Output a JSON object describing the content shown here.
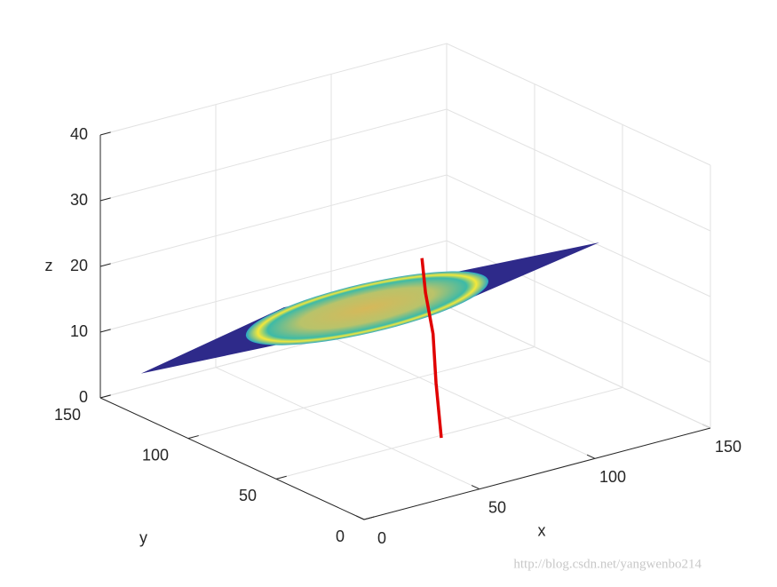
{
  "chart_data": {
    "type": "surface3d",
    "xlabel": "x",
    "ylabel": "y",
    "zlabel": "z",
    "xlim": [
      0,
      150
    ],
    "ylim": [
      0,
      150
    ],
    "zlim": [
      0,
      40
    ],
    "xticks": [
      0,
      50,
      100,
      150
    ],
    "yticks": [
      0,
      50,
      100,
      150
    ],
    "zticks": [
      0,
      10,
      20,
      30,
      40
    ],
    "grid": true,
    "plane": {
      "color": "#2e2a8a",
      "x": [
        10,
        30,
        140,
        120
      ],
      "y": [
        140,
        85,
        50,
        112
      ],
      "z": [
        4,
        19,
        23,
        7
      ]
    },
    "line": {
      "color": "#e00000",
      "x": [
        70,
        70,
        71,
        70,
        70
      ],
      "y": [
        48,
        51,
        54,
        57,
        59
      ],
      "z": [
        0,
        8,
        15,
        21,
        26
      ]
    },
    "watermark": "http://blog.csdn.net/yangwenbo214"
  }
}
